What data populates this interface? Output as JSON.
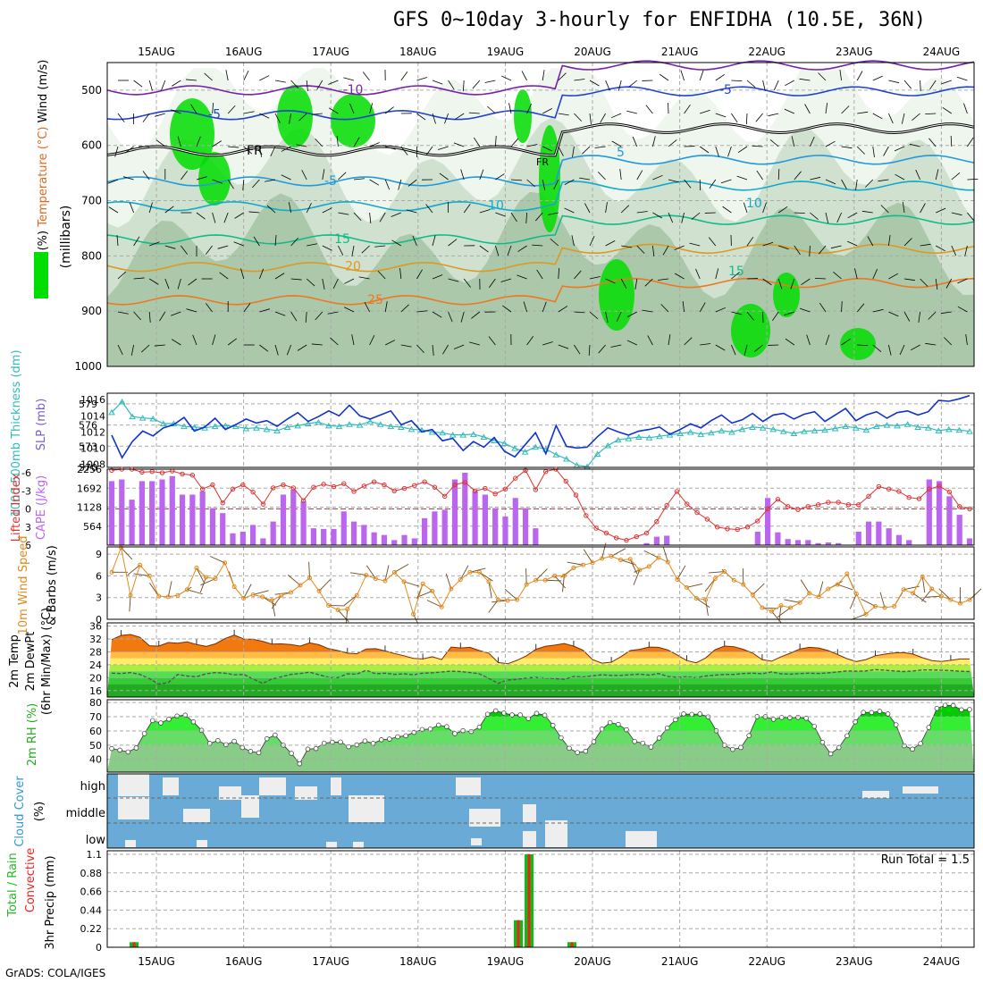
{
  "title": "GFS 0~10day 3-hourly for ENFIDHA (10.5E, 36N)",
  "credit": "GrADS: COLA/IGES",
  "dates": [
    "15AUG",
    "16AUG",
    "17AUG",
    "18AUG",
    "19AUG",
    "20AUG",
    "21AUG",
    "22AUG",
    "23AUG",
    "24AUG"
  ],
  "colors": {
    "rh_green": "#00dd00",
    "thickness": "#33bbbb",
    "slp": "#1133cc",
    "lifted_index": "#dd3333",
    "cape": "#bb66ee",
    "wind_speed": "#e08a1e",
    "barbs": "#6b4a1f",
    "temp_fill": "#f07a10",
    "cloud": "#6aaad6",
    "precip_total": "#11bb11",
    "precip_conv": "#ee2222"
  },
  "chart_data": [
    {
      "type": "heatmap",
      "panel": "upper-air",
      "ylabel_parts": [
        "RH (%)",
        "Temperature (°C)",
        "Wind (m/s)"
      ],
      "ylabel2": "(millibars)",
      "yticks": [
        "500",
        "600",
        "700",
        "800",
        "900",
        "1000"
      ],
      "ylim": [
        1000,
        450
      ],
      "contour_labels": [
        "-10",
        "-5",
        "FR",
        "FR",
        "-5",
        "-5",
        "-5",
        "5",
        "5",
        "10",
        "10",
        "15",
        "15",
        "20",
        "25"
      ]
    },
    {
      "type": "line",
      "panel": "thickness-slp",
      "ylabel_left": "1000-500mb Thickness (dm)",
      "ylabel_right": "SLP (mb)",
      "yticks_left": [
        "570",
        "573",
        "576",
        "579"
      ],
      "yticks_right": [
        "1008",
        "1010",
        "1012",
        "1014",
        "1016"
      ],
      "thickness": [
        577.8,
        579.3,
        577.2,
        577.0,
        576.9,
        576.2,
        576.2,
        575.8,
        575.7,
        575.6,
        575.8,
        575.9,
        575.8,
        575.5,
        575.6,
        575.4,
        575.2,
        575.7,
        575.9,
        576.2,
        576.4,
        575.9,
        575.8,
        576.1,
        576.0,
        576.5,
        576.1,
        575.8,
        575.7,
        575.4,
        575.3,
        575.0,
        574.9,
        574.6,
        574.6,
        574.7,
        574.3,
        573.8,
        573.4,
        572.7,
        572.2,
        572.9,
        572.6,
        571.8,
        571.2,
        570.3,
        570.1,
        571.9,
        573.1,
        573.9,
        574.1,
        574.3,
        574.2,
        574.4,
        574.6,
        574.8,
        575.0,
        574.7,
        574.9,
        575.2,
        575.0,
        575.4,
        575.7,
        575.6,
        575.4,
        575.1,
        574.8,
        575.1,
        575.2,
        575.3,
        575.5,
        575.8,
        575.6,
        575.3,
        575.8,
        576.0,
        575.9,
        576.1,
        575.7,
        575.6,
        575.2,
        575.4,
        575.3,
        575.1
      ],
      "slp": [
        1011.6,
        1008.8,
        1010.8,
        1012.1,
        1011.5,
        1012.5,
        1012.9,
        1013.8,
        1012.1,
        1012.6,
        1013.7,
        1012.3,
        1012.9,
        1013.6,
        1013.1,
        1013.4,
        1012.7,
        1013.6,
        1014.4,
        1013.3,
        1013.9,
        1014.6,
        1014.0,
        1015.3,
        1014.0,
        1013.6,
        1014.1,
        1014.6,
        1012.9,
        1013.4,
        1012.0,
        1012.3,
        1010.9,
        1011.2,
        1009.7,
        1010.8,
        1010.1,
        1011.3,
        1009.6,
        1008.9,
        1010.4,
        1011.9,
        1009.3,
        1012.8,
        1010.2,
        1010.0,
        1010.1,
        1011.4,
        1012.5,
        1012.0,
        1011.6,
        1012.1,
        1012.3,
        1012.6,
        1011.7,
        1012.3,
        1013.0,
        1012.5,
        1013.4,
        1014.1,
        1013.1,
        1013.5,
        1014.3,
        1013.3,
        1014.1,
        1014.3,
        1013.6,
        1014.2,
        1014.5,
        1013.3,
        1014.1,
        1014.9,
        1013.4,
        1014.1,
        1014.5,
        1013.7,
        1014.4,
        1014.6,
        1014.1,
        1014.5,
        1015.9,
        1015.8,
        1016.1,
        1016.5
      ]
    },
    {
      "type": "bar",
      "panel": "cape-li",
      "ylabel_left": "Lifted Index",
      "ylabel_right": "CAPE (J/kg)",
      "yticks_left": [
        "-6",
        "-3",
        "0",
        "3",
        "6"
      ],
      "yticks_right": [
        "564",
        "1128",
        "1692",
        "2256"
      ],
      "cape": [
        1900,
        1950,
        1350,
        1900,
        1900,
        1950,
        2050,
        1500,
        1500,
        1600,
        1100,
        950,
        350,
        400,
        600,
        200,
        700,
        1500,
        1650,
        1300,
        500,
        480,
        480,
        1000,
        700,
        600,
        380,
        300,
        150,
        300,
        200,
        800,
        1000,
        1050,
        1950,
        2150,
        1600,
        1500,
        1100,
        850,
        1400,
        1100,
        500,
        0,
        0,
        0,
        0,
        0,
        0,
        0,
        0,
        0,
        0,
        60,
        250,
        280,
        0,
        0,
        0,
        0,
        0,
        0,
        0,
        0,
        400,
        1400,
        380,
        180,
        150,
        150,
        60,
        80,
        60,
        0,
        400,
        700,
        700,
        500,
        300,
        150,
        0,
        1950,
        1900,
        1450,
        900,
        200
      ],
      "lifted_index": [
        -6.4,
        -6.6,
        -6.8,
        -6.1,
        -6.2,
        -6.0,
        -6.3,
        -5.8,
        -5.6,
        -3.3,
        -4.0,
        -1.0,
        -3.3,
        -4.0,
        -2.8,
        -0.8,
        -3.5,
        -4.0,
        -3.5,
        -1.4,
        -3.6,
        -4.1,
        -3.7,
        -4.2,
        -2.9,
        -3.8,
        -4.5,
        -4.0,
        -3.0,
        -3.4,
        -3.9,
        -4.5,
        -3.6,
        -2.1,
        -4.0,
        -4.4,
        -3.0,
        -3.4,
        -2.5,
        -3.3,
        -5.1,
        -6.4,
        -3.2,
        -6.2,
        -7.0,
        -4.6,
        -2.3,
        1.1,
        3.2,
        4.0,
        4.8,
        5.2,
        4.6,
        4.0,
        2.1,
        -0.6,
        -2.9,
        -0.8,
        0.6,
        1.7,
        3.0,
        3.3,
        3.4,
        3.0,
        2.0,
        0.0,
        -1.6,
        -0.4,
        0.1,
        -0.4,
        -0.7,
        -1.1,
        -1.1,
        -0.7,
        -0.7,
        -2.1,
        -3.7,
        -3.3,
        -2.9,
        -1.9,
        -1.7,
        -3.3,
        -3.8,
        -2.8,
        -0.4,
        0.0
      ]
    },
    {
      "type": "line",
      "panel": "wind",
      "ylabel": "10m Wind Speed & Barbs (m/s)",
      "yticks": [
        "0",
        "3",
        "6",
        "9"
      ],
      "ylim": [
        0,
        10
      ],
      "speed": [
        6.5,
        9.9,
        3.3,
        7.5,
        6.0,
        3.2,
        3.1,
        3.3,
        4.1,
        7.1,
        5.8,
        5.6,
        7.8,
        4.5,
        2.9,
        3.4,
        3.1,
        2.6,
        3.3,
        3.7,
        4.7,
        5.7,
        3.9,
        1.9,
        1.3,
        1.4,
        3.3,
        6.1,
        5.6,
        5.3,
        6.5,
        5.2,
        0.7,
        4.9,
        3.9,
        1.7,
        4.2,
        5.5,
        6.5,
        6.5,
        5.2,
        2.7,
        2.6,
        2.7,
        4.8,
        5.4,
        5.4,
        6.0,
        6.0,
        7.1,
        7.5,
        7.8,
        8.4,
        8.7,
        8.2,
        8.3,
        6.8,
        7.3,
        8.5,
        7.9,
        5.5,
        4.4,
        2.9,
        2.7,
        5.6,
        6.6,
        5.4,
        4.8,
        3.4,
        1.6,
        1.1,
        1.9,
        1.6,
        2.3,
        3.6,
        3.1,
        4.2,
        4.8,
        6.3,
        3.5,
        0.7,
        1.8,
        1.6,
        1.8,
        4.1,
        3.6,
        5.9,
        4.2,
        3.2,
        2.7,
        2.2,
        2.7
      ]
    },
    {
      "type": "area",
      "panel": "temp",
      "ylabel": "2m Temp 2m DewPt (6hr Min/Max) (°C)",
      "yticks": [
        "16",
        "20",
        "24",
        "28",
        "32",
        "36"
      ],
      "ylim": [
        14,
        37
      ],
      "temp_max": [
        31.8,
        33.1,
        33.4,
        32.5,
        29.9,
        29.8,
        30.9,
        30.7,
        31.1,
        30.3,
        29.7,
        30.5,
        32.1,
        33.2,
        32.0,
        31.9,
        31.3,
        30.4,
        30.5,
        30.3,
        29.8,
        30.8,
        30.2,
        29.0,
        28.4,
        27.6,
        27.4,
        28.9,
        29.0,
        28.3,
        27.5,
        26.8,
        26.0,
        25.8,
        26.5,
        25.6,
        29.5,
        29.2,
        29.4,
        28.4,
        27.6,
        24.7,
        24.3,
        25.4,
        26.8,
        28.8,
        29.7,
        30.1,
        30.6,
        29.8,
        28.5,
        25.6,
        24.5,
        24.8,
        26.5,
        28.4,
        28.8,
        29.5,
        29.4,
        28.6,
        27.0,
        25.3,
        24.6,
        26.1,
        28.7,
        29.8,
        29.6,
        28.8,
        27.6,
        25.6,
        25.1,
        26.5,
        27.6,
        28.9,
        29.4,
        29.2,
        28.4,
        27.2,
        25.9,
        25.0,
        25.6,
        26.8,
        27.3,
        27.7,
        27.8,
        27.3,
        26.2,
        25.3,
        25.0,
        25.4,
        25.8,
        25.8
      ],
      "dewpt": [
        21.4,
        21.3,
        21.6,
        21.0,
        19.7,
        18.0,
        18.5,
        21.0,
        20.5,
        20.3,
        21.2,
        21.6,
        21.4,
        20.9,
        21.0,
        19.6,
        18.2,
        19.6,
        20.3,
        21.0,
        21.3,
        21.7,
        20.9,
        20.1,
        20.0,
        21.2,
        21.1,
        22.3,
        21.2,
        21.4,
        21.0,
        21.2,
        20.9,
        21.4,
        21.5,
        21.8,
        22.0,
        21.9,
        21.6,
        21.2,
        19.8,
        18.2,
        19.3,
        19.5,
        19.9,
        20.1,
        19.9,
        19.7,
        19.5,
        20.4,
        20.2,
        20.6,
        20.9,
        20.7,
        20.7,
        20.9,
        21.1,
        20.8,
        21.3,
        20.4,
        20.1,
        20.3,
        20.0,
        20.5,
        20.8,
        21.0,
        21.0,
        21.3,
        21.4,
        21.2,
        21.8,
        21.2,
        21.1,
        21.3,
        21.4,
        21.3,
        21.5,
        21.8,
        22.1,
        22.0,
        22.1,
        22.5,
        22.3,
        22.1,
        21.9,
        22.1,
        22.4,
        22.4,
        22.3,
        22.2,
        22.0,
        21.9
      ]
    },
    {
      "type": "area",
      "panel": "rh",
      "ylabel": "2m RH (%)",
      "yticks": [
        "40",
        "50",
        "60",
        "70",
        "80"
      ],
      "ylim": [
        31,
        82
      ],
      "rh": [
        47.6,
        46.5,
        45.2,
        48.0,
        58.1,
        67.3,
        65.6,
        68.3,
        70.5,
        71.1,
        66.4,
        60.4,
        51.2,
        53.2,
        50.3,
        52.7,
        48.3,
        45.6,
        44.6,
        54.5,
        57.1,
        50.0,
        44.2,
        36.9,
        47.2,
        47.6,
        51.4,
        52.1,
        52.2,
        48.9,
        50.2,
        52.9,
        51.2,
        53.8,
        54.3,
        55.9,
        56.6,
        59.0,
        61.0,
        61.4,
        64.1,
        63.0,
        58.1,
        60.2,
        59.6,
        62.7,
        71.8,
        74.2,
        72.6,
        71.3,
        71.3,
        68.7,
        72.4,
        71.1,
        63.9,
        55.2,
        47.8,
        44.8,
        45.7,
        52.4,
        61.3,
        65.9,
        64.6,
        60.8,
        52.6,
        51.4,
        48.6,
        55.0,
        62.1,
        67.9,
        72.0,
        71.7,
        72.0,
        69.9,
        60.1,
        49.9,
        47.0,
        48.3,
        56.7,
        70.1,
        70.0,
        68.2,
        69.5,
        69.3,
        69.6,
        68.9,
        63.2,
        52.0,
        43.9,
        48.3,
        56.6,
        66.4,
        73.1,
        73.0,
        73.8,
        72.0,
        64.3,
        49.6,
        47.2,
        51.1,
        62.5,
        75.9,
        78.1,
        77.9,
        74.9,
        75.1
      ]
    },
    {
      "type": "heatmap",
      "panel": "cloud",
      "ylabel": "Cloud Cover (%)",
      "yticks": [
        "high",
        "middle",
        "low"
      ]
    },
    {
      "type": "bar",
      "panel": "precip",
      "ylabel": "3hr Precip (mm)",
      "legend_total": "Total / Rain",
      "legend_conv": "Convective",
      "yticks": [
        "0",
        "0.22",
        "0.44",
        "0.66",
        "0.88",
        "1.1"
      ],
      "ylim": [
        0,
        1.1
      ],
      "run_total": "Run Total = 1.5",
      "precip_total": [
        0.06,
        0.32,
        1.1,
        0.06
      ],
      "precip_conv": [
        0.06,
        0.32,
        1.1,
        0.06
      ],
      "precip_at": [
        "14AUG 21Z",
        "19AUG 03Z",
        "19AUG 06Z",
        "19AUG 21Z"
      ]
    }
  ]
}
